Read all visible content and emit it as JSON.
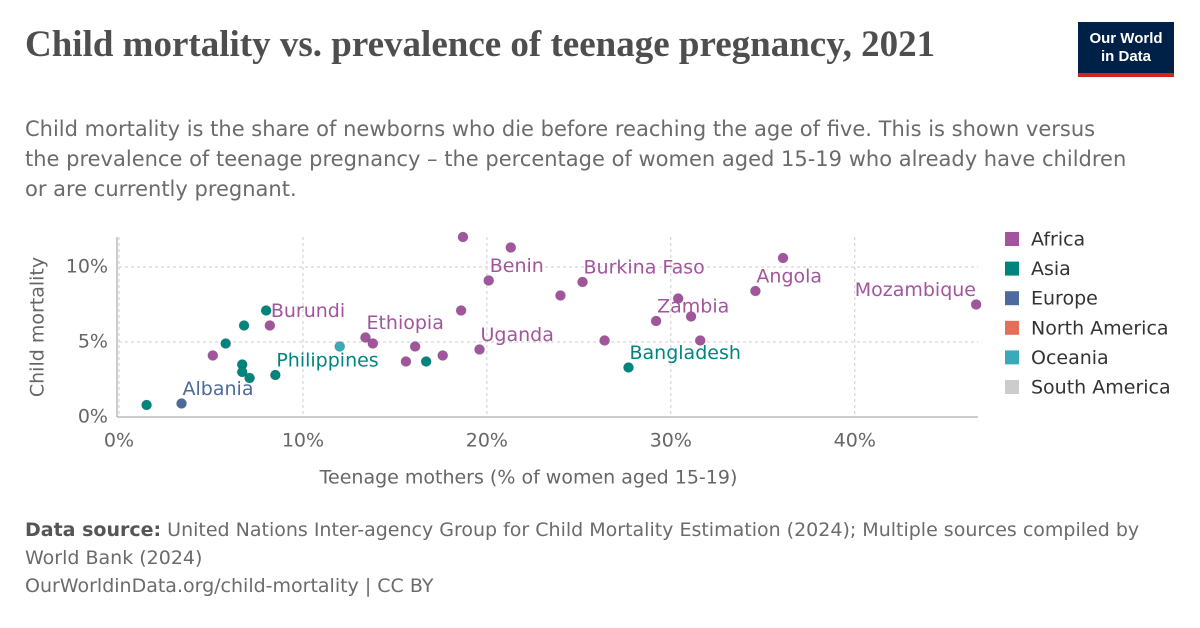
{
  "chart_data": {
    "type": "scatter",
    "title": "Child mortality vs. prevalence of teenage pregnancy, 2021",
    "subtitle": "Child mortality is the share of newborns who die before reaching the age of five. This is shown versus the prevalence of teenage pregnancy – the percentage of women aged 15-19 who already have children or are currently pregnant.",
    "x_label": "Teenage mothers (% of women aged 15-19)",
    "y_label": "Child mortality",
    "xlim": [
      0,
      46.7
    ],
    "ylim": [
      0,
      12
    ],
    "xticks": [
      {
        "value": 0,
        "label": "0%"
      },
      {
        "value": 10,
        "label": "10%"
      },
      {
        "value": 20,
        "label": "20%"
      },
      {
        "value": 30,
        "label": "30%"
      },
      {
        "value": 40,
        "label": "40%"
      }
    ],
    "yticks": [
      {
        "value": 0,
        "label": "0%"
      },
      {
        "value": 5,
        "label": "5%"
      },
      {
        "value": 10,
        "label": "10%"
      }
    ],
    "grid": true,
    "legend_position": "right",
    "series": [
      {
        "name": "Africa",
        "color": "#a2559c",
        "x": [
          18.7,
          21.3,
          20.1,
          25.2,
          24.0,
          36.1,
          34.6,
          46.6,
          30.4,
          31.1,
          29.2,
          26.4,
          31.6,
          18.6,
          19.6,
          17.6,
          16.1,
          15.6,
          13.4,
          13.8,
          8.2,
          5.1
        ],
        "values": [
          12.0,
          11.3,
          9.1,
          9.0,
          8.1,
          10.6,
          8.4,
          7.5,
          7.9,
          6.7,
          6.4,
          5.1,
          5.1,
          7.1,
          4.5,
          4.1,
          4.7,
          3.7,
          5.3,
          4.9,
          6.1,
          4.1
        ],
        "labels": [
          null,
          null,
          "Benin",
          "Burkina Faso",
          null,
          null,
          "Angola",
          "Mozambique",
          null,
          null,
          "Zambia",
          null,
          null,
          null,
          "Uganda",
          null,
          null,
          null,
          "Ethiopia",
          null,
          "Burundi",
          null
        ]
      },
      {
        "name": "Asia",
        "color": "#00847e",
        "x": [
          1.5,
          8.0,
          6.8,
          5.8,
          6.7,
          6.7,
          7.1,
          8.5,
          16.7,
          27.7
        ],
        "values": [
          0.8,
          7.1,
          6.1,
          4.9,
          3.5,
          3.0,
          2.6,
          2.8,
          3.7,
          3.3
        ],
        "labels": [
          null,
          null,
          null,
          null,
          null,
          null,
          null,
          "Philippines",
          null,
          "Bangladesh"
        ]
      },
      {
        "name": "Europe",
        "color": "#4c6a9c",
        "x": [
          3.4
        ],
        "values": [
          0.9
        ],
        "labels": [
          "Albania"
        ]
      },
      {
        "name": "North America",
        "color": "#e56e5a",
        "x": [],
        "values": [],
        "labels": []
      },
      {
        "name": "Oceania",
        "color": "#38aaba",
        "x": [
          12.0
        ],
        "values": [
          4.7
        ],
        "labels": [
          null
        ]
      },
      {
        "name": "South America",
        "color": "#cccccc",
        "x": [],
        "values": [],
        "labels": []
      }
    ]
  },
  "logo": {
    "line1": "Our World",
    "line2": "in Data"
  },
  "footer": {
    "source_label": "Data source:",
    "source": "United Nations Inter-agency Group for Child Mortality Estimation (2024); Multiple sources compiled by World Bank (2024)",
    "url": "OurWorldinData.org/child-mortality | CC BY"
  }
}
